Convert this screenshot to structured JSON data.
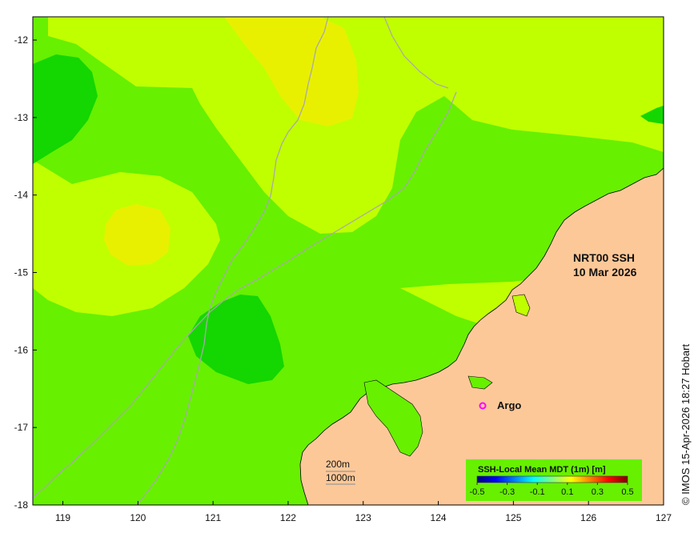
{
  "map": {
    "title_line1": "NRT00 SSH",
    "title_line2": "10 Mar 2026",
    "credit": "© IMOS 15-Apr-2026 18:27 Hobart",
    "x_ticks": [
      "119",
      "120",
      "121",
      "122",
      "123",
      "124",
      "125",
      "126",
      "127"
    ],
    "y_ticks": [
      "-12",
      "-13",
      "-14",
      "-15",
      "-16",
      "-17",
      "-18"
    ],
    "lon_range": [
      118.6,
      127
    ],
    "lat_range": [
      -18,
      -11.7
    ],
    "contours": {
      "label_200": "200m",
      "label_1000": "1000m"
    },
    "argo_label": "Argo",
    "argo_color": "#ff00ff",
    "land_color": "#fdc898",
    "colorbar": {
      "title": "SSH-Local Mean MDT (1m) [m]",
      "ticks": [
        "-0.5",
        "-0.3",
        "-0.1",
        "0.1",
        "0.3",
        "0.5"
      ],
      "colors": [
        "#00007f",
        "#0000ff",
        "#007fff",
        "#00ffff",
        "#7fff7f",
        "#ffff00",
        "#ff7f00",
        "#ff0000",
        "#7f0000"
      ]
    }
  }
}
